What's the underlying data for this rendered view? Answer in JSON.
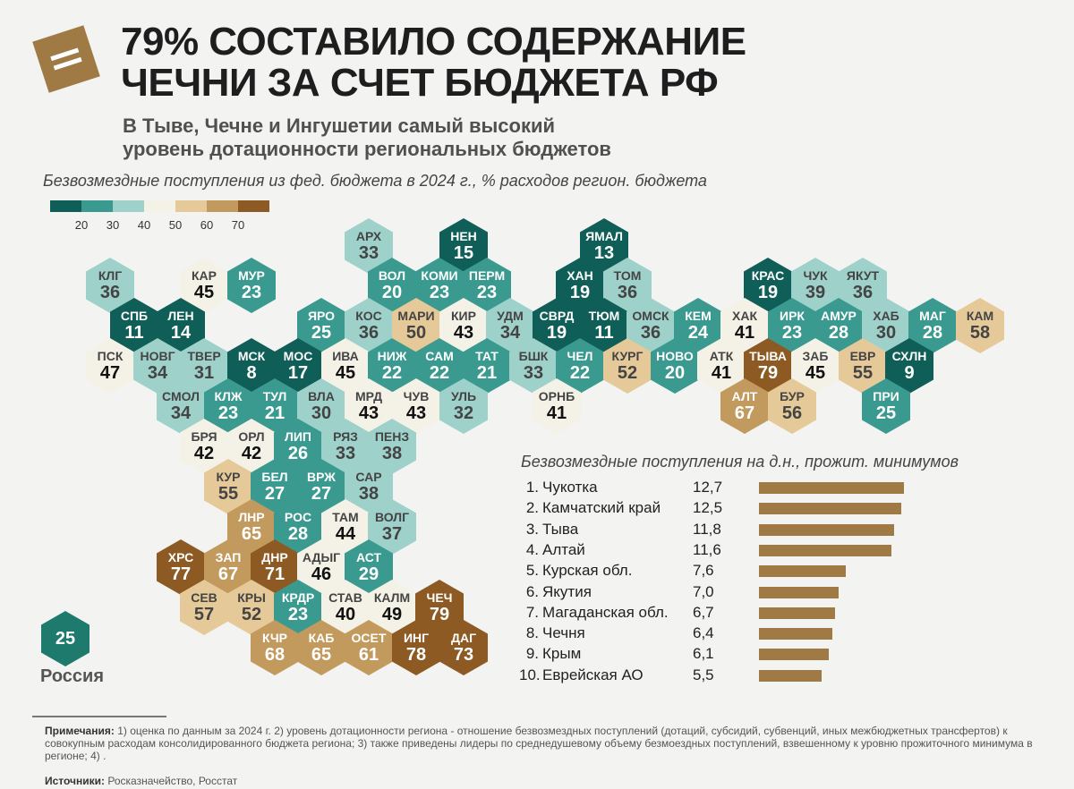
{
  "header": {
    "title_line1": "79% СОСТАВИЛО СОДЕРЖАНИЕ",
    "title_line2": "ЧЕЧНИ ЗА СЧЕТ БЮДЖЕТА РФ",
    "subtitle_line1": "В Тыве, Чечне и Ингушетии самый высокий",
    "subtitle_line2": "уровень дотационности региональных бюджетов"
  },
  "map": {
    "caption": "Безвозмездные поступления из фед. бюджета в 2024 г., % расходов регион. бюджета",
    "legend": [
      {
        "color": "#0f5e57",
        "label": "20"
      },
      {
        "color": "#3b9a90",
        "label": "30"
      },
      {
        "color": "#9fd1cb",
        "label": "40"
      },
      {
        "color": "#f4f1e6",
        "label": "50"
      },
      {
        "color": "#e5c998",
        "label": "60"
      },
      {
        "color": "#c39a5e",
        "label": "70"
      },
      {
        "color": "#8c5a22",
        "label": ""
      }
    ],
    "russia": {
      "value": "25",
      "label": "Россия"
    },
    "regions": [
      {
        "code": "АРХ",
        "value": "33"
      },
      {
        "code": "НЕН",
        "value": "15"
      },
      {
        "code": "ЯМАЛ",
        "value": "13"
      },
      {
        "code": "КЛГ",
        "value": "36"
      },
      {
        "code": "КАР",
        "value": "45"
      },
      {
        "code": "МУР",
        "value": "23"
      },
      {
        "code": "ВОЛ",
        "value": "20"
      },
      {
        "code": "КОМИ",
        "value": "23"
      },
      {
        "code": "ПЕРМ",
        "value": "23"
      },
      {
        "code": "ХАН",
        "value": "19"
      },
      {
        "code": "ТОМ",
        "value": "36"
      },
      {
        "code": "КРАС",
        "value": "19"
      },
      {
        "code": "ЧУК",
        "value": "39"
      },
      {
        "code": "ЯКУТ",
        "value": "36"
      },
      {
        "code": "СПБ",
        "value": "11"
      },
      {
        "code": "ЛЕН",
        "value": "14"
      },
      {
        "code": "ЯРО",
        "value": "25"
      },
      {
        "code": "КОС",
        "value": "36"
      },
      {
        "code": "МАРИ",
        "value": "50"
      },
      {
        "code": "КИР",
        "value": "43"
      },
      {
        "code": "УДМ",
        "value": "34"
      },
      {
        "code": "СВРД",
        "value": "19"
      },
      {
        "code": "ТЮМ",
        "value": "11"
      },
      {
        "code": "ОМСК",
        "value": "36"
      },
      {
        "code": "КЕМ",
        "value": "24"
      },
      {
        "code": "ХАК",
        "value": "41"
      },
      {
        "code": "ИРК",
        "value": "23"
      },
      {
        "code": "АМУР",
        "value": "28"
      },
      {
        "code": "ХАБ",
        "value": "30"
      },
      {
        "code": "МАГ",
        "value": "28"
      },
      {
        "code": "КАМ",
        "value": "58"
      },
      {
        "code": "ПСК",
        "value": "47"
      },
      {
        "code": "НОВГ",
        "value": "34"
      },
      {
        "code": "ТВЕР",
        "value": "31"
      },
      {
        "code": "МСК",
        "value": "8"
      },
      {
        "code": "МОС",
        "value": "17"
      },
      {
        "code": "ИВА",
        "value": "45"
      },
      {
        "code": "НИЖ",
        "value": "22"
      },
      {
        "code": "САМ",
        "value": "22"
      },
      {
        "code": "ТАТ",
        "value": "21"
      },
      {
        "code": "БШК",
        "value": "33"
      },
      {
        "code": "ЧЕЛ",
        "value": "22"
      },
      {
        "code": "КУРГ",
        "value": "52"
      },
      {
        "code": "НОВО",
        "value": "20"
      },
      {
        "code": "АТК",
        "value": "41"
      },
      {
        "code": "ТЫВА",
        "value": "79"
      },
      {
        "code": "ЗАБ",
        "value": "45"
      },
      {
        "code": "ЕВР",
        "value": "55"
      },
      {
        "code": "СХЛН",
        "value": "9"
      },
      {
        "code": "СМОЛ",
        "value": "34"
      },
      {
        "code": "КЛЖ",
        "value": "23"
      },
      {
        "code": "ТУЛ",
        "value": "21"
      },
      {
        "code": "ВЛА",
        "value": "30"
      },
      {
        "code": "МРД",
        "value": "43"
      },
      {
        "code": "ЧУВ",
        "value": "43"
      },
      {
        "code": "УЛЬ",
        "value": "32"
      },
      {
        "code": "ОРНБ",
        "value": "41"
      },
      {
        "code": "АЛТ",
        "value": "67"
      },
      {
        "code": "БУР",
        "value": "56"
      },
      {
        "code": "ПРИ",
        "value": "25"
      },
      {
        "code": "БРЯ",
        "value": "42"
      },
      {
        "code": "ОРЛ",
        "value": "42"
      },
      {
        "code": "ЛИП",
        "value": "26"
      },
      {
        "code": "РЯЗ",
        "value": "33"
      },
      {
        "code": "ПЕНЗ",
        "value": "38"
      },
      {
        "code": "КУР",
        "value": "55"
      },
      {
        "code": "БЕЛ",
        "value": "27"
      },
      {
        "code": "ВРЖ",
        "value": "27"
      },
      {
        "code": "САР",
        "value": "38"
      },
      {
        "code": "ЛНР",
        "value": "65"
      },
      {
        "code": "РОС",
        "value": "28"
      },
      {
        "code": "ТАМ",
        "value": "44"
      },
      {
        "code": "ВОЛГ",
        "value": "37"
      },
      {
        "code": "ХРС",
        "value": "77"
      },
      {
        "code": "ЗАП",
        "value": "67"
      },
      {
        "code": "ДНР",
        "value": "71"
      },
      {
        "code": "АДЫГ",
        "value": "46"
      },
      {
        "code": "АСТ",
        "value": "29"
      },
      {
        "code": "СЕВ",
        "value": "57"
      },
      {
        "code": "КРЫ",
        "value": "52"
      },
      {
        "code": "КРДР",
        "value": "23"
      },
      {
        "code": "СТАВ",
        "value": "40"
      },
      {
        "code": "КАЛМ",
        "value": "49"
      },
      {
        "code": "ЧЕЧ",
        "value": "79"
      },
      {
        "code": "КЧР",
        "value": "68"
      },
      {
        "code": "КАБ",
        "value": "65"
      },
      {
        "code": "ОСЕТ",
        "value": "61"
      },
      {
        "code": "ИНГ",
        "value": "78"
      },
      {
        "code": "ДАГ",
        "value": "73"
      }
    ]
  },
  "ranking": {
    "caption": "Безвозмездные поступления на д.н., прожит. минимумов",
    "items": [
      {
        "rank": "1.",
        "name": "Чукотка",
        "value_text": "12,7",
        "value": 12.7
      },
      {
        "rank": "2.",
        "name": "Камчатский край",
        "value_text": "12,5",
        "value": 12.5
      },
      {
        "rank": "3.",
        "name": "Тыва",
        "value_text": "11,8",
        "value": 11.8
      },
      {
        "rank": "4.",
        "name": "Алтай",
        "value_text": "11,6",
        "value": 11.6
      },
      {
        "rank": "5.",
        "name": "Курская обл.",
        "value_text": "7,6",
        "value": 7.6
      },
      {
        "rank": "6.",
        "name": "Якутия",
        "value_text": "7,0",
        "value": 7.0
      },
      {
        "rank": "7.",
        "name": "Магаданская обл.",
        "value_text": "6,7",
        "value": 6.7
      },
      {
        "rank": "8.",
        "name": "Чечня",
        "value_text": "6,4",
        "value": 6.4
      },
      {
        "rank": "9.",
        "name": "Крым",
        "value_text": "6,1",
        "value": 6.1
      },
      {
        "rank": "10.",
        "name": "Еврейская АО",
        "value_text": "5,5",
        "value": 5.5
      }
    ]
  },
  "footer": {
    "notes_label": "Примечания:",
    "notes_text": " 1) оценка по данным за 2024 г. 2) уровень дотационности региона - отношение безвозмездных поступлений (дотаций, субсидий, субвенций, иных межбюджетных трансфертов) к совокупным расходам консолидированного бюджета региона; 3) также приведены лидеры по среднедушевому объему безмоездных поступлений, взвешенному к уровню прожиточного минимума в регионе; 4) .",
    "sources_label": "Источники:",
    "sources_text": " Росказначейство, Росстат"
  }
}
